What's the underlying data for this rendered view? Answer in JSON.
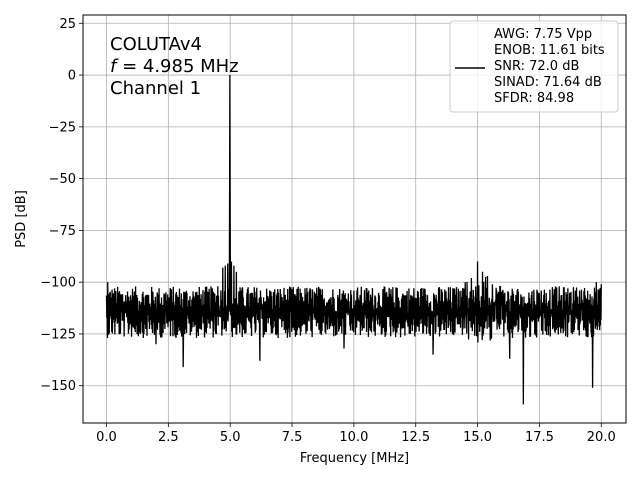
{
  "chart_data": {
    "type": "line",
    "title": "",
    "xlabel": "Frequency [MHz]",
    "ylabel": "PSD [dB]",
    "xlim": [
      -0.95,
      21.0
    ],
    "ylim": [
      -168,
      29
    ],
    "xticks": [
      0.0,
      2.5,
      5.0,
      7.5,
      10.0,
      12.5,
      15.0,
      17.5,
      20.0
    ],
    "xtick_labels": [
      "0.0",
      "2.5",
      "5.0",
      "7.5",
      "10.0",
      "12.5",
      "15.0",
      "17.5",
      "20.0"
    ],
    "yticks": [
      25,
      0,
      -25,
      -50,
      -75,
      -100,
      -125,
      -150
    ],
    "ytick_labels": [
      "25",
      "0",
      "−25",
      "−50",
      "−75",
      "−100",
      "−125",
      "−150"
    ],
    "grid": true,
    "line_color": "#000000",
    "annotation": {
      "line1": "COLUTAv4",
      "line2_var": "f",
      "line2_rest": " = 4.985 MHz",
      "line3": "Channel 1"
    },
    "legend": {
      "placement": "top-right",
      "entries": [
        "AWG: 7.75 Vpp",
        "ENOB: 11.61 bits",
        "SNR: 72.0 dB",
        "SINAD: 71.64 dB",
        "SFDR: 84.98"
      ]
    },
    "series": [
      {
        "noise_floor_db": -113,
        "noise_range_db": [
          -127,
          -100
        ],
        "x_range": [
          0.0,
          20.0
        ],
        "main_peak": {
          "x": 4.985,
          "y": 0
        },
        "skirt": [
          {
            "x": 4.7,
            "y": -93
          },
          {
            "x": 4.8,
            "y": -92
          },
          {
            "x": 4.9,
            "y": -91
          },
          {
            "x": 5.05,
            "y": -90
          },
          {
            "x": 5.15,
            "y": -92
          },
          {
            "x": 5.25,
            "y": -95
          }
        ],
        "spurs": [
          {
            "x": 0.05,
            "y": -100
          },
          {
            "x": 3.2,
            "y": -106
          },
          {
            "x": 4.5,
            "y": -102
          },
          {
            "x": 10.0,
            "y": -104
          },
          {
            "x": 14.5,
            "y": -100
          },
          {
            "x": 14.75,
            "y": -98
          },
          {
            "x": 15.0,
            "y": -90
          },
          {
            "x": 15.2,
            "y": -95
          },
          {
            "x": 15.4,
            "y": -97
          },
          {
            "x": 15.6,
            "y": -101
          },
          {
            "x": 19.8,
            "y": -100
          },
          {
            "x": 20.0,
            "y": -101
          }
        ],
        "dips": [
          {
            "x": 2.0,
            "y": -130
          },
          {
            "x": 3.1,
            "y": -141
          },
          {
            "x": 6.2,
            "y": -138
          },
          {
            "x": 9.6,
            "y": -132
          },
          {
            "x": 13.2,
            "y": -135
          },
          {
            "x": 16.3,
            "y": -137
          },
          {
            "x": 16.85,
            "y": -159
          },
          {
            "x": 19.65,
            "y": -151
          }
        ]
      }
    ]
  }
}
